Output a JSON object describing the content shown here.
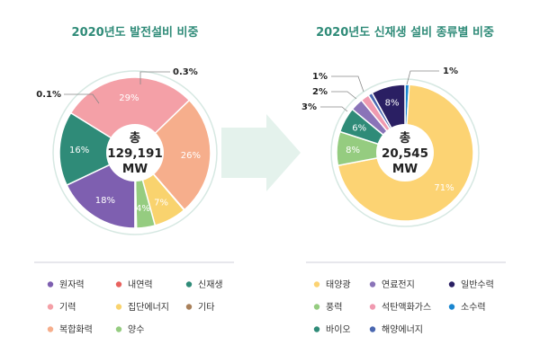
{
  "chart_data": [
    {
      "type": "pie",
      "title": "2020년도 발전설비 비중",
      "center": {
        "line1": "총",
        "line2": "129,191",
        "line3": "MW"
      },
      "slices": [
        {
          "name": "원자력",
          "value": 18,
          "label": "18%",
          "color": "#7e5fb0"
        },
        {
          "name": "신재생",
          "value": 16,
          "label": "16%",
          "color": "#2f8b78"
        },
        {
          "name": "기력",
          "value": 29,
          "label": "29%",
          "color": "#f4a0a7"
        },
        {
          "name": "복합화력",
          "value": 26,
          "label": "26%",
          "color": "#f6ae8c"
        },
        {
          "name": "내연력",
          "value": 0.1,
          "label": "0.1%",
          "color": "#e8625e"
        },
        {
          "name": "집단에너지",
          "value": 7,
          "label": "7%",
          "color": "#f9d36e"
        },
        {
          "name": "양수",
          "value": 4,
          "label": "4%",
          "color": "#95cc80"
        },
        {
          "name": "기타",
          "value": 0.3,
          "label": "0.3%",
          "color": "#a9805a"
        }
      ],
      "legend": [
        "원자력",
        "내연력",
        "신재생",
        "기력",
        "집단에너지",
        "기타",
        "복합화력",
        "양수"
      ]
    },
    {
      "type": "pie",
      "title": "2020년도 신재생 설비 종류별 비중",
      "center": {
        "line1": "총",
        "line2": "20,545",
        "line3": "MW"
      },
      "slices": [
        {
          "name": "소수력",
          "value": 1,
          "label": "1%",
          "color": "#1a86d0"
        },
        {
          "name": "태양광",
          "value": 71,
          "label": "71%",
          "color": "#fcd373"
        },
        {
          "name": "풍력",
          "value": 8,
          "label": "8%",
          "color": "#95cc80"
        },
        {
          "name": "바이오",
          "value": 6,
          "label": "6%",
          "color": "#2f8b78"
        },
        {
          "name": "연료전지",
          "value": 3,
          "label": "3%",
          "color": "#8a74b8"
        },
        {
          "name": "석탄액화가스",
          "value": 2,
          "label": "2%",
          "color": "#f09ab0"
        },
        {
          "name": "해양에너지",
          "value": 1,
          "label": "1%",
          "color": "#4a67b0"
        },
        {
          "name": "일반수력",
          "value": 8,
          "label": "8%",
          "color": "#2a1f63"
        }
      ],
      "legend": [
        "태양광",
        "연료전지",
        "일반수력",
        "풍력",
        "석탄액화가스",
        "소수력",
        "바이오",
        "해양에너지"
      ]
    }
  ],
  "colors": {
    "title": "#2f8b78",
    "ring": "#d6e8e2",
    "arrow": "#e4f2ec",
    "divider": "#cfcfd8"
  }
}
